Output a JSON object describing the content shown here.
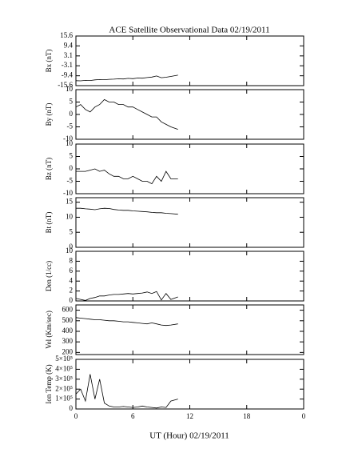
{
  "chart_data": [
    {
      "type": "line",
      "title": "ACE Satellite Observational Data   02/19/2011",
      "ylabel": "Bx (nT)",
      "ylim": [
        -15.6,
        15.6
      ],
      "yticks": [
        15.6,
        9.4,
        3.1,
        -3.1,
        -9.4,
        -15.6
      ],
      "x": [
        0,
        0.5,
        1,
        1.5,
        2,
        2.5,
        3,
        3.5,
        4,
        4.5,
        5,
        5.5,
        6,
        6.5,
        7,
        7.5,
        8,
        8.5,
        9,
        9.5,
        10,
        10.75
      ],
      "values": [
        -12.5,
        -12.6,
        -12.3,
        -12.4,
        -12.0,
        -11.8,
        -11.9,
        -11.6,
        -11.5,
        -11.3,
        -11.4,
        -11.0,
        -11.2,
        -10.8,
        -10.9,
        -10.5,
        -10.2,
        -9.5,
        -10.6,
        -10.3,
        -9.8,
        -9.0
      ]
    },
    {
      "type": "line",
      "ylabel": "By (nT)",
      "ylim": [
        -10,
        10
      ],
      "yticks": [
        10,
        5,
        0,
        -5,
        -10
      ],
      "x": [
        0,
        0.5,
        1,
        1.5,
        2,
        2.5,
        3,
        3.5,
        4,
        4.5,
        5,
        5.5,
        6,
        6.5,
        7,
        7.5,
        8,
        8.5,
        9,
        9.5,
        10,
        10.75
      ],
      "values": [
        3,
        4,
        2,
        1,
        3,
        4,
        6,
        5,
        5,
        4,
        4,
        3,
        3,
        2,
        1,
        0,
        -1,
        -1,
        -3,
        -4,
        -5,
        -6
      ]
    },
    {
      "type": "line",
      "ylabel": "Bz (nT)",
      "ylim": [
        -10,
        10
      ],
      "yticks": [
        10,
        5,
        0,
        -5,
        -10
      ],
      "x": [
        0,
        0.5,
        1,
        1.5,
        2,
        2.5,
        3,
        3.5,
        4,
        4.5,
        5,
        5.5,
        6,
        6.5,
        7,
        7.5,
        8,
        8.5,
        9,
        9.5,
        10,
        10.75
      ],
      "values": [
        -1,
        -1,
        -1,
        -0.5,
        0,
        -1,
        -0.5,
        -2,
        -3,
        -3,
        -4,
        -4,
        -3,
        -4,
        -5,
        -5,
        -6,
        -3,
        -5,
        -1,
        -4,
        -4
      ]
    },
    {
      "type": "line",
      "ylabel": "Bt (nT)",
      "ylim": [
        0,
        16.5
      ],
      "yticks": [
        15,
        10,
        5,
        0
      ],
      "x": [
        0,
        0.5,
        1,
        1.5,
        2,
        2.5,
        3,
        3.5,
        4,
        4.5,
        5,
        5.5,
        6,
        6.5,
        7,
        7.5,
        8,
        8.5,
        9,
        9.5,
        10,
        10.75
      ],
      "values": [
        13,
        13,
        12.8,
        12.7,
        12.5,
        12.8,
        13,
        12.9,
        12.6,
        12.4,
        12.3,
        12.3,
        12.1,
        12,
        11.9,
        11.8,
        11.6,
        11.5,
        11.5,
        11.3,
        11.2,
        11.0
      ]
    },
    {
      "type": "line",
      "ylabel": "Den (1/cc)",
      "ylim": [
        0,
        10
      ],
      "yticks": [
        10,
        8,
        6,
        4,
        2,
        0
      ],
      "x": [
        0,
        0.5,
        1,
        1.5,
        2,
        2.5,
        3,
        3.5,
        4,
        4.5,
        5,
        5.5,
        6,
        6.5,
        7,
        7.5,
        8,
        8.5,
        9,
        9.5,
        10,
        10.75
      ],
      "values": [
        0.5,
        0.3,
        0.1,
        0.5,
        0.7,
        1,
        1,
        1.2,
        1.3,
        1.3,
        1.4,
        1.5,
        1.4,
        1.5,
        1.6,
        1.8,
        1.5,
        1.9,
        0.2,
        1.5,
        0.3,
        0.8
      ]
    },
    {
      "type": "line",
      "ylabel": "Vel (Km/sec)",
      "ylim": [
        180,
        650
      ],
      "yticks": [
        600,
        500,
        400,
        300,
        200
      ],
      "x": [
        0,
        0.5,
        1,
        1.5,
        2,
        2.5,
        3,
        3.5,
        4,
        4.5,
        5,
        5.5,
        6,
        6.5,
        7,
        7.5,
        8,
        8.5,
        9,
        9.5,
        10,
        10.75
      ],
      "values": [
        530,
        525,
        520,
        515,
        510,
        510,
        505,
        500,
        500,
        495,
        490,
        490,
        485,
        480,
        475,
        470,
        480,
        470,
        460,
        455,
        460,
        470
      ]
    },
    {
      "type": "line",
      "ylabel": "Ion Temp (K)",
      "xlabel": "UT (Hour)   02/19/2011",
      "ylim": [
        0,
        500000
      ],
      "yticks": [
        {
          "value": 500000,
          "label": "5×10⁵"
        },
        {
          "value": 400000,
          "label": "4×10⁵"
        },
        {
          "value": 300000,
          "label": "3×10⁵"
        },
        {
          "value": 200000,
          "label": "2×10⁵"
        },
        {
          "value": 100000,
          "label": "1×10⁵"
        },
        0
      ],
      "xlim": [
        0,
        24
      ],
      "xticks": [
        0,
        6,
        12,
        18,
        {
          "value": 24,
          "label": "0"
        }
      ],
      "x": [
        0,
        0.5,
        1,
        1.5,
        2,
        2.5,
        3,
        3.5,
        4,
        4.5,
        5,
        5.5,
        6,
        6.5,
        7,
        7.5,
        8,
        8.5,
        9,
        9.5,
        10,
        10.75
      ],
      "values": [
        150000,
        200000,
        80000,
        350000,
        100000,
        300000,
        60000,
        30000,
        20000,
        20000,
        25000,
        20000,
        15000,
        20000,
        30000,
        20000,
        15000,
        10000,
        20000,
        15000,
        80000,
        100000
      ]
    }
  ]
}
